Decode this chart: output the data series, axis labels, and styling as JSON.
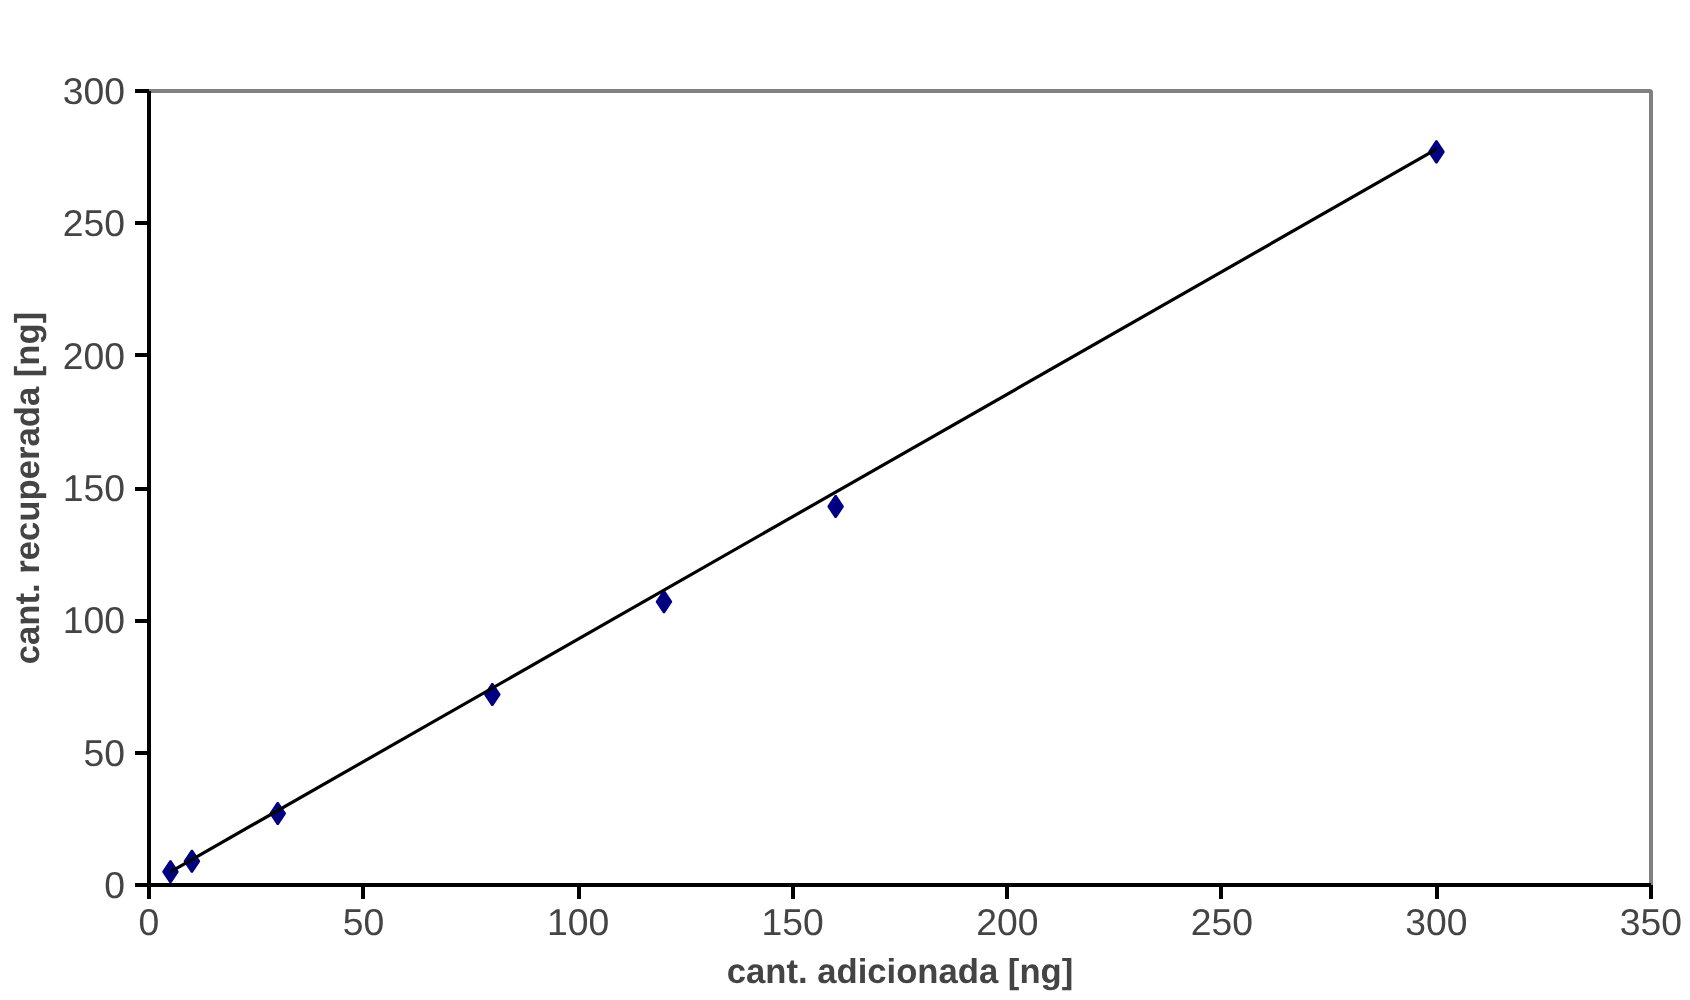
{
  "chart_data": {
    "type": "scatter",
    "xlabel": "cant. adicionada [ng]",
    "ylabel": "cant. recuperada [ng]",
    "x": [
      5,
      10,
      30,
      80,
      120,
      160,
      300
    ],
    "series": [
      {
        "color": "#000080",
        "marker": "diamond",
        "values": [
          5,
          9,
          27,
          72,
          107,
          143,
          277
        ]
      },
      {
        "type": "line",
        "color": "#000000",
        "x": [
          5,
          300
        ],
        "values": [
          5,
          278
        ]
      }
    ],
    "xlim": [
      0,
      350
    ],
    "xticks": [
      0,
      50,
      100,
      150,
      200,
      250,
      300,
      350
    ],
    "ylim": [
      0,
      300
    ],
    "yticks": [
      0,
      50,
      100,
      150,
      200,
      250,
      300
    ],
    "grid": false
  }
}
